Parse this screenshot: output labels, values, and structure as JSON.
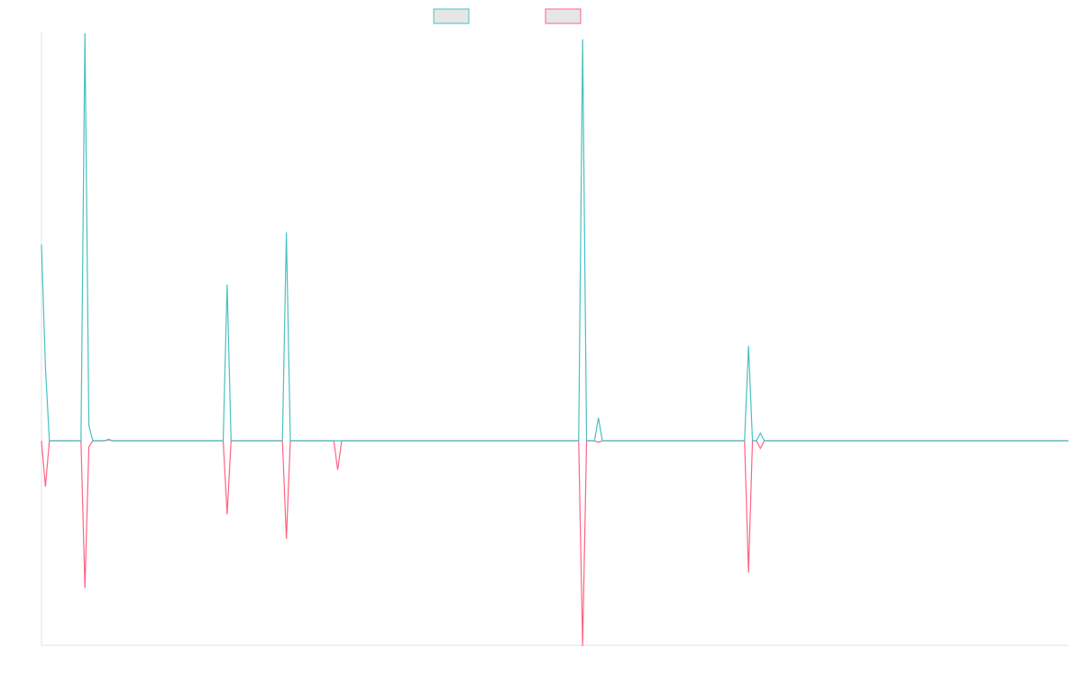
{
  "chart_data": {
    "type": "line",
    "title": "",
    "xlabel": "",
    "ylabel": "",
    "legend_position": "top-center",
    "grid": false,
    "x_points": 260,
    "ylim": [
      -1.0,
      1.0
    ],
    "series": [
      {
        "color": "#4bc0c0",
        "legend_fill": "#e6e6e6",
        "points": [
          {
            "x": 0,
            "y": 0.64
          },
          {
            "x": 1,
            "y": 0.24
          },
          {
            "x": 2,
            "y": 0
          },
          {
            "x": 10,
            "y": 0
          },
          {
            "x": 11,
            "y": 1.33
          },
          {
            "x": 12,
            "y": 0.05
          },
          {
            "x": 13,
            "y": 0
          },
          {
            "x": 16,
            "y": 0
          },
          {
            "x": 17,
            "y": 0.005
          },
          {
            "x": 18,
            "y": 0
          },
          {
            "x": 46,
            "y": 0
          },
          {
            "x": 47,
            "y": 0.51
          },
          {
            "x": 48,
            "y": 0
          },
          {
            "x": 61,
            "y": 0
          },
          {
            "x": 62,
            "y": 0.68
          },
          {
            "x": 63,
            "y": 0
          },
          {
            "x": 136,
            "y": 0
          },
          {
            "x": 137,
            "y": 1.31
          },
          {
            "x": 138,
            "y": 0
          },
          {
            "x": 140,
            "y": 0
          },
          {
            "x": 141,
            "y": 0.075
          },
          {
            "x": 142,
            "y": 0
          },
          {
            "x": 178,
            "y": 0
          },
          {
            "x": 179,
            "y": 0.31
          },
          {
            "x": 180,
            "y": 0
          },
          {
            "x": 181,
            "y": 0
          },
          {
            "x": 182,
            "y": 0.025
          },
          {
            "x": 183,
            "y": 0
          },
          {
            "x": 260,
            "y": 0
          }
        ]
      },
      {
        "color": "#ff6384",
        "legend_fill": "#e6e6e6",
        "points": [
          {
            "x": 0,
            "y": 0
          },
          {
            "x": 1,
            "y": -0.15
          },
          {
            "x": 2,
            "y": 0
          },
          {
            "x": 10,
            "y": 0
          },
          {
            "x": 11,
            "y": -0.48
          },
          {
            "x": 12,
            "y": -0.02
          },
          {
            "x": 13,
            "y": 0
          },
          {
            "x": 16,
            "y": 0
          },
          {
            "x": 17,
            "y": 0.003
          },
          {
            "x": 18,
            "y": 0
          },
          {
            "x": 46,
            "y": 0
          },
          {
            "x": 47,
            "y": -0.24
          },
          {
            "x": 48,
            "y": 0
          },
          {
            "x": 61,
            "y": 0
          },
          {
            "x": 62,
            "y": -0.32
          },
          {
            "x": 63,
            "y": 0
          },
          {
            "x": 74,
            "y": 0
          },
          {
            "x": 75,
            "y": -0.095
          },
          {
            "x": 76,
            "y": 0
          },
          {
            "x": 136,
            "y": 0
          },
          {
            "x": 137,
            "y": -0.67
          },
          {
            "x": 138,
            "y": 0
          },
          {
            "x": 140,
            "y": 0
          },
          {
            "x": 141,
            "y": -0.005
          },
          {
            "x": 142,
            "y": 0
          },
          {
            "x": 178,
            "y": 0
          },
          {
            "x": 179,
            "y": -0.43
          },
          {
            "x": 180,
            "y": 0
          },
          {
            "x": 181,
            "y": 0
          },
          {
            "x": 182,
            "y": -0.025
          },
          {
            "x": 183,
            "y": 0
          },
          {
            "x": 260,
            "y": 0
          }
        ]
      }
    ]
  }
}
